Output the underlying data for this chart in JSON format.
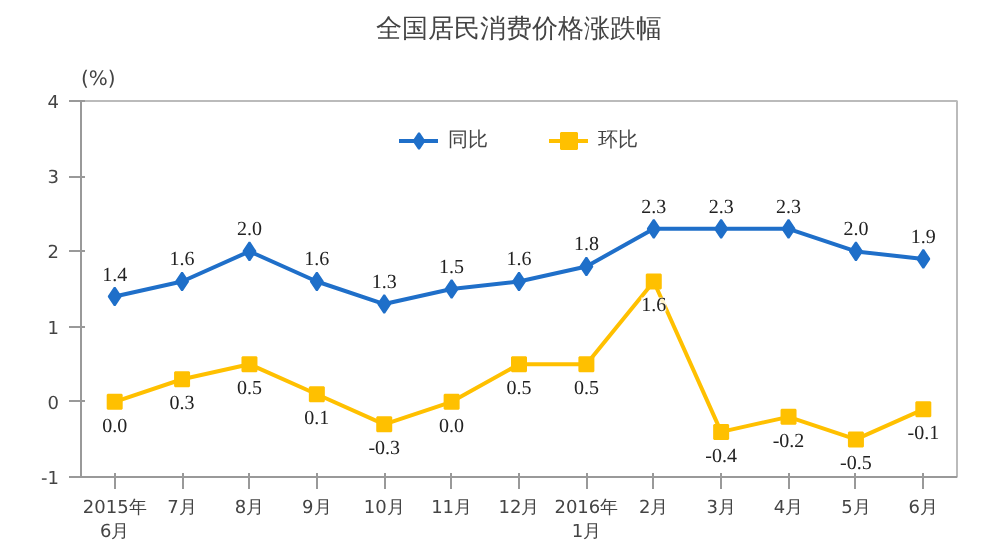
{
  "chart_data": {
    "type": "line",
    "title": "全国居民消费价格涨跌幅",
    "ylabel": "(%)",
    "categories": [
      "2015年\n6月",
      "7月",
      "8月",
      "9月",
      "10月",
      "11月",
      "12月",
      "2016年\n1月",
      "2月",
      "3月",
      "4月",
      "5月",
      "6月"
    ],
    "ylim": [
      -1,
      4
    ],
    "yticks": [
      -1,
      0,
      1,
      2,
      3,
      4
    ],
    "grid": false,
    "legend": "top",
    "series": [
      {
        "name": "同比",
        "color": "#1f6fc9",
        "marker": "diamond",
        "values": [
          1.4,
          1.6,
          2.0,
          1.6,
          1.3,
          1.5,
          1.6,
          1.8,
          2.3,
          2.3,
          2.3,
          2.0,
          1.9
        ],
        "value_labels": [
          "1.4",
          "1.6",
          "2.0",
          "1.6",
          "1.3",
          "1.5",
          "1.6",
          "1.8",
          "2.3",
          "2.3",
          "2.3",
          "2.0",
          "1.9"
        ]
      },
      {
        "name": "环比",
        "color": "#ffc000",
        "marker": "square",
        "values": [
          0.0,
          0.3,
          0.5,
          0.1,
          -0.3,
          0.0,
          0.5,
          0.5,
          1.6,
          -0.4,
          -0.2,
          -0.5,
          -0.1
        ],
        "value_labels": [
          "0.0",
          "0.3",
          "0.5",
          "0.1",
          "-0.3",
          "0.0",
          "0.5",
          "0.5",
          "1.6",
          "-0.4",
          "-0.2",
          "-0.5",
          "-0.1"
        ]
      }
    ]
  }
}
